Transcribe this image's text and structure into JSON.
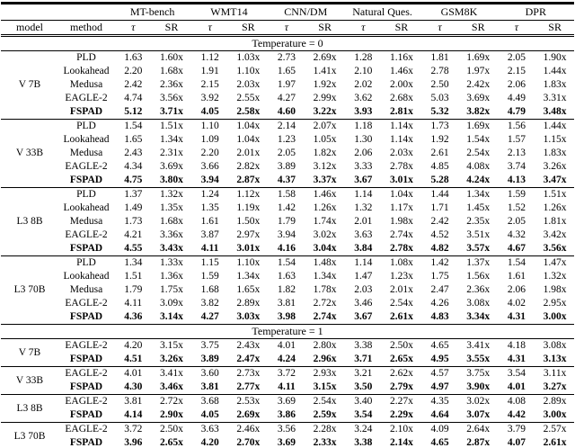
{
  "table": {
    "benchmarks": [
      "MT-bench",
      "WMT14",
      "CNN/DM",
      "Natural Ques.",
      "GSM8K",
      "DPR"
    ],
    "column_headers": {
      "model": "model",
      "method": "method",
      "tau": "τ",
      "speedup": "SR"
    },
    "sections": [
      {
        "title": "Temperature = 0",
        "blocks": [
          {
            "model": "V 7B",
            "rows": [
              {
                "method": "PLD",
                "bold": false,
                "values": [
                  "1.63",
                  "1.60x",
                  "1.12",
                  "1.03x",
                  "2.73",
                  "2.69x",
                  "1.28",
                  "1.16x",
                  "1.81",
                  "1.69x",
                  "2.05",
                  "1.90x"
                ]
              },
              {
                "method": "Lookahead",
                "bold": false,
                "values": [
                  "2.20",
                  "1.68x",
                  "1.91",
                  "1.10x",
                  "1.65",
                  "1.41x",
                  "2.10",
                  "1.46x",
                  "2.78",
                  "1.97x",
                  "2.15",
                  "1.44x"
                ]
              },
              {
                "method": "Medusa",
                "bold": false,
                "values": [
                  "2.42",
                  "2.36x",
                  "2.15",
                  "2.03x",
                  "1.97",
                  "1.92x",
                  "2.02",
                  "2.00x",
                  "2.50",
                  "2.42x",
                  "2.06",
                  "1.83x"
                ]
              },
              {
                "method": "EAGLE-2",
                "bold": false,
                "values": [
                  "4.74",
                  "3.56x",
                  "3.92",
                  "2.55x",
                  "4.27",
                  "2.99x",
                  "3.62",
                  "2.68x",
                  "5.03",
                  "3.69x",
                  "4.49",
                  "3.31x"
                ]
              },
              {
                "method": "FSPAD",
                "bold": true,
                "values": [
                  "5.12",
                  "3.71x",
                  "4.05",
                  "2.58x",
                  "4.60",
                  "3.22x",
                  "3.93",
                  "2.81x",
                  "5.32",
                  "3.82x",
                  "4.79",
                  "3.48x"
                ]
              }
            ]
          },
          {
            "model": "V 33B",
            "rows": [
              {
                "method": "PLD",
                "bold": false,
                "values": [
                  "1.54",
                  "1.51x",
                  "1.10",
                  "1.04x",
                  "2.14",
                  "2.07x",
                  "1.18",
                  "1.14x",
                  "1.73",
                  "1.69x",
                  "1.56",
                  "1.44x"
                ]
              },
              {
                "method": "Lookahead",
                "bold": false,
                "values": [
                  "1.65",
                  "1.34x",
                  "1.09",
                  "1.04x",
                  "1.23",
                  "1.05x",
                  "1.30",
                  "1.14x",
                  "1.92",
                  "1.54x",
                  "1.57",
                  "1.15x"
                ]
              },
              {
                "method": "Medusa",
                "bold": false,
                "values": [
                  "2.43",
                  "2.31x",
                  "2.20",
                  "2.01x",
                  "2.05",
                  "1.82x",
                  "2.06",
                  "2.03x",
                  "2.61",
                  "2.54x",
                  "2.13",
                  "1.83x"
                ]
              },
              {
                "method": "EAGLE-2",
                "bold": false,
                "values": [
                  "4.34",
                  "3.69x",
                  "3.66",
                  "2.82x",
                  "3.89",
                  "3.12x",
                  "3.33",
                  "2.78x",
                  "4.85",
                  "4.08x",
                  "3.74",
                  "3.26x"
                ]
              },
              {
                "method": "FSPAD",
                "bold": true,
                "values": [
                  "4.75",
                  "3.80x",
                  "3.94",
                  "2.87x",
                  "4.37",
                  "3.37x",
                  "3.67",
                  "3.01x",
                  "5.28",
                  "4.24x",
                  "4.13",
                  "3.47x"
                ]
              }
            ]
          },
          {
            "model": "L3 8B",
            "rows": [
              {
                "method": "PLD",
                "bold": false,
                "values": [
                  "1.37",
                  "1.32x",
                  "1.24",
                  "1.12x",
                  "1.58",
                  "1.46x",
                  "1.14",
                  "1.04x",
                  "1.44",
                  "1.34x",
                  "1.59",
                  "1.51x"
                ]
              },
              {
                "method": "Lookahead",
                "bold": false,
                "values": [
                  "1.49",
                  "1.35x",
                  "1.35",
                  "1.19x",
                  "1.42",
                  "1.26x",
                  "1.32",
                  "1.17x",
                  "1.71",
                  "1.45x",
                  "1.52",
                  "1.26x"
                ]
              },
              {
                "method": "Medusa",
                "bold": false,
                "values": [
                  "1.73",
                  "1.68x",
                  "1.61",
                  "1.50x",
                  "1.79",
                  "1.74x",
                  "2.01",
                  "1.98x",
                  "2.42",
                  "2.35x",
                  "2.05",
                  "1.81x"
                ]
              },
              {
                "method": "EAGLE-2",
                "bold": false,
                "values": [
                  "4.21",
                  "3.36x",
                  "3.87",
                  "2.97x",
                  "3.94",
                  "3.02x",
                  "3.63",
                  "2.74x",
                  "4.52",
                  "3.51x",
                  "4.32",
                  "3.42x"
                ]
              },
              {
                "method": "FSPAD",
                "bold": true,
                "values": [
                  "4.55",
                  "3.43x",
                  "4.11",
                  "3.01x",
                  "4.16",
                  "3.04x",
                  "3.84",
                  "2.78x",
                  "4.82",
                  "3.57x",
                  "4.67",
                  "3.56x"
                ]
              }
            ]
          },
          {
            "model": "L3 70B",
            "rows": [
              {
                "method": "PLD",
                "bold": false,
                "values": [
                  "1.34",
                  "1.33x",
                  "1.15",
                  "1.10x",
                  "1.54",
                  "1.48x",
                  "1.14",
                  "1.08x",
                  "1.42",
                  "1.37x",
                  "1.54",
                  "1.47x"
                ]
              },
              {
                "method": "Lookahead",
                "bold": false,
                "values": [
                  "1.51",
                  "1.36x",
                  "1.59",
                  "1.34x",
                  "1.63",
                  "1.34x",
                  "1.47",
                  "1.23x",
                  "1.75",
                  "1.56x",
                  "1.61",
                  "1.32x"
                ]
              },
              {
                "method": "Medusa",
                "bold": false,
                "values": [
                  "1.79",
                  "1.75x",
                  "1.68",
                  "1.65x",
                  "1.82",
                  "1.78x",
                  "2.03",
                  "2.01x",
                  "2.47",
                  "2.36x",
                  "2.06",
                  "1.98x"
                ]
              },
              {
                "method": "EAGLE-2",
                "bold": false,
                "values": [
                  "4.11",
                  "3.09x",
                  "3.82",
                  "2.89x",
                  "3.81",
                  "2.72x",
                  "3.46",
                  "2.54x",
                  "4.26",
                  "3.08x",
                  "4.02",
                  "2.95x"
                ]
              },
              {
                "method": "FSPAD",
                "bold": true,
                "values": [
                  "4.36",
                  "3.14x",
                  "4.27",
                  "3.03x",
                  "3.98",
                  "2.74x",
                  "3.67",
                  "2.61x",
                  "4.83",
                  "3.34x",
                  "4.31",
                  "3.00x"
                ]
              }
            ]
          }
        ]
      },
      {
        "title": "Temperature = 1",
        "blocks": [
          {
            "model": "V 7B",
            "rows": [
              {
                "method": "EAGLE-2",
                "bold": false,
                "values": [
                  "4.20",
                  "3.15x",
                  "3.75",
                  "2.43x",
                  "4.01",
                  "2.80x",
                  "3.38",
                  "2.50x",
                  "4.65",
                  "3.41x",
                  "4.18",
                  "3.08x"
                ]
              },
              {
                "method": "FSPAD",
                "bold": true,
                "values": [
                  "4.51",
                  "3.26x",
                  "3.89",
                  "2.47x",
                  "4.24",
                  "2.96x",
                  "3.71",
                  "2.65x",
                  "4.95",
                  "3.55x",
                  "4.31",
                  "3.13x"
                ]
              }
            ]
          },
          {
            "model": "V 33B",
            "rows": [
              {
                "method": "EAGLE-2",
                "bold": false,
                "values": [
                  "4.01",
                  "3.41x",
                  "3.60",
                  "2.73x",
                  "3.72",
                  "2.93x",
                  "3.21",
                  "2.62x",
                  "4.57",
                  "3.75x",
                  "3.54",
                  "3.11x"
                ]
              },
              {
                "method": "FSPAD",
                "bold": true,
                "values": [
                  "4.30",
                  "3.46x",
                  "3.81",
                  "2.77x",
                  "4.11",
                  "3.15x",
                  "3.50",
                  "2.79x",
                  "4.97",
                  "3.90x",
                  "4.01",
                  "3.27x"
                ]
              }
            ]
          },
          {
            "model": "L3 8B",
            "rows": [
              {
                "method": "EAGLE-2",
                "bold": false,
                "values": [
                  "3.81",
                  "2.72x",
                  "3.68",
                  "2.53x",
                  "3.69",
                  "2.54x",
                  "3.40",
                  "2.27x",
                  "4.35",
                  "3.02x",
                  "4.08",
                  "2.89x"
                ]
              },
              {
                "method": "FSPAD",
                "bold": true,
                "values": [
                  "4.14",
                  "2.90x",
                  "4.05",
                  "2.69x",
                  "3.86",
                  "2.59x",
                  "3.54",
                  "2.29x",
                  "4.64",
                  "3.07x",
                  "4.42",
                  "3.00x"
                ]
              }
            ]
          },
          {
            "model": "L3 70B",
            "rows": [
              {
                "method": "EAGLE-2",
                "bold": false,
                "values": [
                  "3.72",
                  "2.50x",
                  "3.63",
                  "2.46x",
                  "3.56",
                  "2.28x",
                  "3.24",
                  "2.10x",
                  "4.09",
                  "2.64x",
                  "3.79",
                  "2.57x"
                ]
              },
              {
                "method": "FSPAD",
                "bold": true,
                "values": [
                  "3.96",
                  "2.65x",
                  "4.20",
                  "2.70x",
                  "3.69",
                  "2.33x",
                  "3.38",
                  "2.14x",
                  "4.65",
                  "2.87x",
                  "4.07",
                  "2.61x"
                ]
              }
            ]
          }
        ]
      }
    ]
  }
}
